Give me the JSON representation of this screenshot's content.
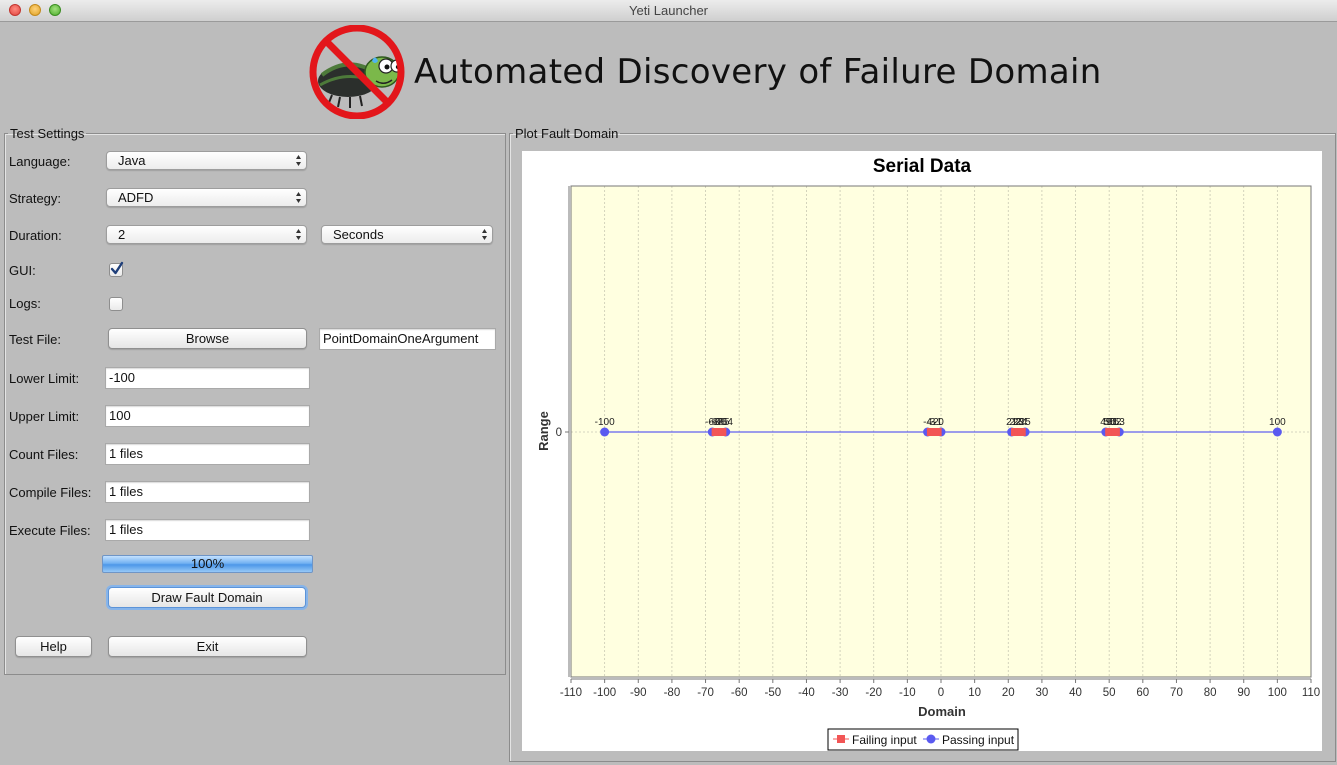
{
  "window": {
    "title": "Yeti Launcher"
  },
  "header": {
    "title": "Automated Discovery of Failure Domain"
  },
  "test_settings": {
    "legend": "Test Settings",
    "language": {
      "label": "Language:",
      "value": "Java"
    },
    "strategy": {
      "label": "Strategy:",
      "value": "ADFD"
    },
    "duration": {
      "label": "Duration:",
      "value": "2",
      "unit": "Seconds"
    },
    "gui": {
      "label": "GUI:",
      "checked": true
    },
    "logs": {
      "label": "Logs:",
      "checked": false
    },
    "test_file": {
      "label": "Test File:",
      "button": "Browse",
      "value": "PointDomainOneArgument"
    },
    "lower_limit": {
      "label": "Lower Limit:",
      "value": "-100"
    },
    "upper_limit": {
      "label": "Upper Limit:",
      "value": "100"
    },
    "count_files": {
      "label": "Count Files:",
      "value": "1 files"
    },
    "compile_files": {
      "label": "Compile Files:",
      "value": "1 files"
    },
    "execute_files": {
      "label": "Execute Files:",
      "value": "1 files"
    },
    "progress": {
      "value": 1.0,
      "text": "100%"
    },
    "draw_button": "Draw Fault Domain",
    "help_button": "Help",
    "exit_button": "Exit"
  },
  "plot_panel": {
    "legend": "Plot Fault Domain"
  },
  "colors": {
    "plot_background": "#ffffe0",
    "failing": "#f25555",
    "passing": "#5a5af0",
    "series_line": "#3a3af5"
  },
  "chart_data": {
    "type": "scatter",
    "title": "Serial Data",
    "xlabel": "Domain",
    "ylabel": "Range",
    "xlim": [
      -110,
      110
    ],
    "xticks": [
      -110,
      -100,
      -90,
      -80,
      -70,
      -60,
      -50,
      -40,
      -30,
      -20,
      -10,
      0,
      10,
      20,
      30,
      40,
      50,
      60,
      70,
      80,
      90,
      100,
      110
    ],
    "yticks": [
      0
    ],
    "grid": true,
    "legend_position": "bottom",
    "series": [
      {
        "name": "Failing input",
        "points": [
          {
            "x": -67,
            "y": 0,
            "label": "-67"
          },
          {
            "x": -66,
            "y": 0,
            "label": "-66"
          },
          {
            "x": -65,
            "y": 0,
            "label": "-65"
          },
          {
            "x": -3,
            "y": 0,
            "label": "-3"
          },
          {
            "x": -2,
            "y": 0,
            "label": "-2"
          },
          {
            "x": -1,
            "y": 0,
            "label": "-1"
          },
          {
            "x": 22,
            "y": 0,
            "label": "22"
          },
          {
            "x": 23,
            "y": 0,
            "label": "23"
          },
          {
            "x": 24,
            "y": 0,
            "label": "24"
          },
          {
            "x": 50,
            "y": 0,
            "label": "50"
          },
          {
            "x": 51,
            "y": 0,
            "label": "51"
          },
          {
            "x": 52,
            "y": 0,
            "label": "52"
          }
        ]
      },
      {
        "name": "Passing input",
        "points": [
          {
            "x": -100,
            "y": 0,
            "label": "-100"
          },
          {
            "x": -68,
            "y": 0,
            "label": "-68"
          },
          {
            "x": -64,
            "y": 0,
            "label": "-64"
          },
          {
            "x": -4,
            "y": 0,
            "label": "-4"
          },
          {
            "x": 0,
            "y": 0,
            "label": "0"
          },
          {
            "x": 21,
            "y": 0,
            "label": "21"
          },
          {
            "x": 25,
            "y": 0,
            "label": "25"
          },
          {
            "x": 49,
            "y": 0,
            "label": "49"
          },
          {
            "x": 53,
            "y": 0,
            "label": "53"
          },
          {
            "x": 100,
            "y": 0,
            "label": "100"
          }
        ]
      }
    ]
  }
}
